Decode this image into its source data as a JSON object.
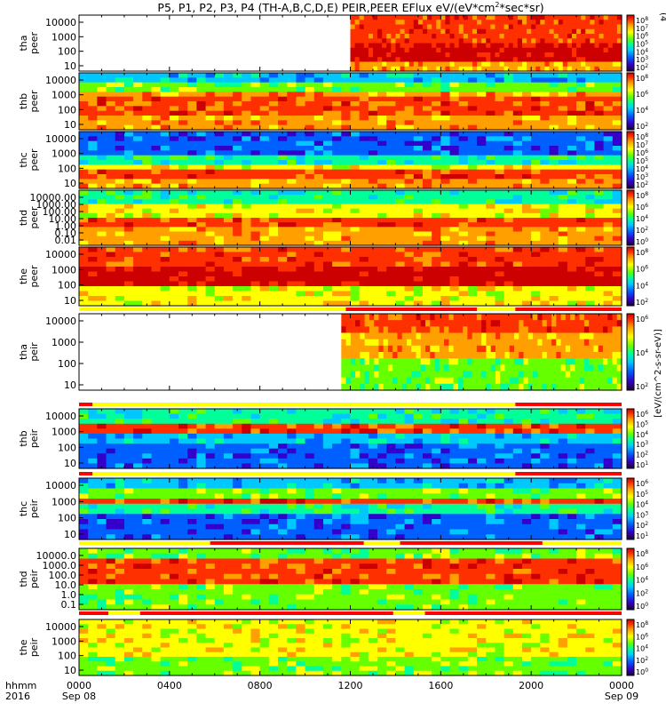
{
  "chart_data": {
    "type": "heatmap",
    "title_text": "P5, P1, P2, P3, P4 (TH-A,B,C,D,E) PEIR,PEER EFlux eV/(eV*cm",
    "title_sup": "2",
    "title_tail": "*sec*sr)",
    "xlim": [
      "Sep 08 0000",
      "Sep 09 0000"
    ],
    "x_ticks": [
      {
        "hour": 0,
        "label": "0000",
        "date": "Sep 08"
      },
      {
        "hour": 4,
        "label": "0400"
      },
      {
        "hour": 8,
        "label": "0800"
      },
      {
        "hour": 12,
        "label": "1200"
      },
      {
        "hour": 16,
        "label": "1600"
      },
      {
        "hour": 20,
        "label": "2000"
      },
      {
        "hour": 24,
        "label": "0000",
        "date": "Sep 09"
      }
    ],
    "x_header_top": "hhmm",
    "x_header_bottom": "2016",
    "colorbar_label": "[eV/(cm^2-s-sr-eV)]",
    "colorbar_top_letter": "(4",
    "panels": [
      {
        "probe": "tha",
        "species": "peer",
        "y_ticks": [
          "10000",
          "1000",
          "100",
          "10"
        ],
        "cb_ticks": [
          "10^8",
          "10^7",
          "10^6",
          "10^5",
          "10^4",
          "10^3",
          "10^2"
        ],
        "data_start_hour": 12.0
      },
      {
        "probe": "thb",
        "species": "peer",
        "y_ticks": [
          "10000",
          "1000",
          "100",
          "10"
        ],
        "cb_ticks": [
          "10^8",
          "10^6",
          "10^4",
          "10^2"
        ],
        "data_start_hour": 0
      },
      {
        "probe": "thc",
        "species": "peer",
        "y_ticks": [
          "10000",
          "1000",
          "100",
          "10"
        ],
        "cb_ticks": [
          "10^8",
          "10^7",
          "10^6",
          "10^5",
          "10^4",
          "10^3",
          "10^2"
        ],
        "data_start_hour": 0
      },
      {
        "probe": "thd",
        "species": "peer",
        "y_ticks": [
          "10000.00",
          "1000.00",
          "100.00",
          "10.00",
          "1.00",
          "0.10",
          "0.01"
        ],
        "cb_ticks": [
          "10^8",
          "10^6",
          "10^4",
          "10^2",
          "10^0"
        ],
        "data_start_hour": 0
      },
      {
        "probe": "the",
        "species": "peer",
        "y_ticks": [
          "10000",
          "1000",
          "100",
          "10"
        ],
        "cb_ticks": [
          "10^8",
          "10^6",
          "10^4",
          "10^2"
        ],
        "data_start_hour": 0
      },
      {
        "probe": "tha",
        "species": "peir",
        "y_ticks": [
          "10000",
          "1000",
          "100",
          "10"
        ],
        "cb_ticks": [
          "10^6",
          "10^4",
          "10^2"
        ],
        "data_start_hour": 11.6
      },
      {
        "probe": "thb",
        "species": "peir",
        "y_ticks": [
          "10000",
          "1000",
          "100",
          "10"
        ],
        "cb_ticks": [
          "10^6",
          "10^5",
          "10^4",
          "10^3",
          "10^2",
          "10^1"
        ],
        "data_start_hour": 0
      },
      {
        "probe": "thc",
        "species": "peir",
        "y_ticks": [
          "10000",
          "1000",
          "100",
          "10"
        ],
        "cb_ticks": [
          "10^6",
          "10^5",
          "10^4",
          "10^3",
          "10^2",
          "10^1"
        ],
        "data_start_hour": 0
      },
      {
        "probe": "thd",
        "species": "peir",
        "y_ticks": [
          "10000.0",
          "1000.0",
          "100.0",
          "10.0",
          "1.0",
          "0.1"
        ],
        "cb_ticks": [
          "10^8",
          "10^6",
          "10^4",
          "10^2",
          "10^0"
        ],
        "data_start_hour": 0
      },
      {
        "probe": "the",
        "species": "peir",
        "y_ticks": [
          "10000",
          "1000",
          "100",
          "10"
        ],
        "cb_ticks": [
          "10^8",
          "10^6",
          "10^4",
          "10^2",
          "10^0"
        ],
        "data_start_hour": 0
      }
    ],
    "mode_bars": [
      {
        "after_panel": 4,
        "segments": [
          {
            "start": 0,
            "end": 11.8,
            "color": "#ffff00"
          },
          {
            "start": 11.8,
            "end": 17.6,
            "color": "#ff0000"
          },
          {
            "start": 17.6,
            "end": 19.3,
            "color": "#ffff00"
          },
          {
            "start": 19.3,
            "end": 24,
            "color": "#ff0000"
          }
        ]
      },
      {
        "after_panel": 5,
        "segments": [
          {
            "start": 0,
            "end": 0.6,
            "color": "#ff0000"
          },
          {
            "start": 0.6,
            "end": 19.3,
            "color": "#ffff00"
          },
          {
            "start": 19.3,
            "end": 24,
            "color": "#ff0000"
          }
        ]
      },
      {
        "after_panel": 6,
        "segments": [
          {
            "start": 0,
            "end": 0.6,
            "color": "#ff0000"
          },
          {
            "start": 0.6,
            "end": 19.3,
            "color": "#ffff00"
          },
          {
            "start": 19.3,
            "end": 24,
            "color": "#ff0000"
          }
        ]
      },
      {
        "after_panel": 7,
        "segments": [
          {
            "start": 0,
            "end": 5.8,
            "color": "#ffff00"
          },
          {
            "start": 5.8,
            "end": 12.6,
            "color": "#ff0000"
          },
          {
            "start": 12.6,
            "end": 14.2,
            "color": "#ffff00"
          },
          {
            "start": 14.2,
            "end": 20.5,
            "color": "#ff0000"
          },
          {
            "start": 20.5,
            "end": 24,
            "color": "#ffff00"
          }
        ]
      },
      {
        "after_panel": 8,
        "segments": [
          {
            "start": 0,
            "end": 1.3,
            "color": "#ff0000"
          },
          {
            "start": 1.3,
            "end": 2.7,
            "color": "#ffff00"
          },
          {
            "start": 2.7,
            "end": 13.9,
            "color": "#ff0000"
          },
          {
            "start": 13.9,
            "end": 15.3,
            "color": "#ffff00"
          },
          {
            "start": 15.3,
            "end": 24,
            "color": "#ff0000"
          }
        ]
      }
    ],
    "colormap": [
      "#1a0033",
      "#3300cc",
      "#0060ff",
      "#00c8ff",
      "#00ff99",
      "#66ff00",
      "#ffff00",
      "#ffa000",
      "#ff3000",
      "#cc0000"
    ]
  }
}
